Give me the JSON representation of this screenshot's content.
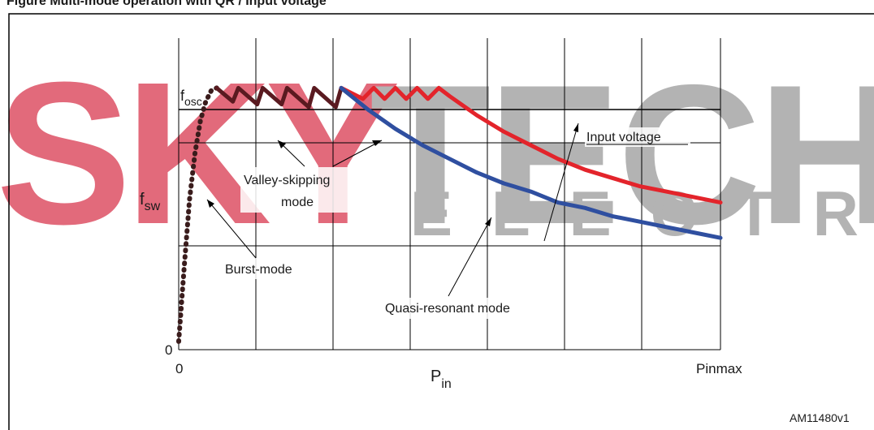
{
  "header": {
    "caption_fragment": "Figure   Multi-mode operation with QR / Input voltage"
  },
  "watermark": {
    "brand_left": "SKY",
    "brand_right": "TECH",
    "brand_sub": "ELECTRONIC",
    "color_left": "#d9394f",
    "color_right": "#9a9a9a"
  },
  "chart_data": {
    "type": "line",
    "xlabel": "P",
    "xlabel_sub": "in",
    "ylabel": "f",
    "ylabel_sub": "sw",
    "x_ticks": [
      "0",
      "Pinmax"
    ],
    "y_ticks": [
      "0"
    ],
    "ref_line": {
      "label": "f",
      "label_sub": "osc",
      "y": 0.96
    },
    "xlim": [
      0,
      1
    ],
    "ylim": [
      0,
      1
    ],
    "grid": true,
    "series": [
      {
        "name": "Burst-mode",
        "color": "#3a1c1c",
        "x": [
          0.0,
          0.01,
          0.02,
          0.03,
          0.04,
          0.05,
          0.06,
          0.07
        ],
        "y": [
          0.03,
          0.3,
          0.55,
          0.72,
          0.84,
          0.91,
          0.95,
          0.96
        ]
      },
      {
        "name": "Valley-skipping mode",
        "color": "#5a1a20",
        "x": [
          0.07,
          0.1,
          0.11,
          0.145,
          0.155,
          0.19,
          0.2,
          0.24,
          0.25,
          0.29,
          0.3
        ],
        "y": [
          0.96,
          0.91,
          0.96,
          0.9,
          0.96,
          0.9,
          0.96,
          0.89,
          0.96,
          0.89,
          0.96
        ]
      },
      {
        "name": "Input voltage (high)",
        "color": "#e3242b",
        "x": [
          0.3,
          0.34,
          0.36,
          0.38,
          0.4,
          0.42,
          0.44,
          0.46,
          0.48,
          0.5,
          0.55,
          0.6,
          0.65,
          0.7,
          0.75,
          0.8,
          0.85,
          0.9,
          0.95,
          1.0
        ],
        "y": [
          0.96,
          0.92,
          0.96,
          0.92,
          0.96,
          0.92,
          0.96,
          0.92,
          0.96,
          0.93,
          0.86,
          0.8,
          0.75,
          0.7,
          0.66,
          0.63,
          0.6,
          0.58,
          0.56,
          0.54
        ]
      },
      {
        "name": "Quasi-resonant mode (low)",
        "color": "#2f4fa0",
        "x": [
          0.3,
          0.35,
          0.4,
          0.45,
          0.5,
          0.55,
          0.6,
          0.65,
          0.7,
          0.75,
          0.8,
          0.85,
          0.9,
          0.95,
          1.0
        ],
        "y": [
          0.96,
          0.88,
          0.81,
          0.75,
          0.7,
          0.65,
          0.61,
          0.58,
          0.54,
          0.52,
          0.49,
          0.47,
          0.45,
          0.43,
          0.41
        ]
      }
    ],
    "annotations": [
      {
        "text": "Valley-skipping",
        "line2": "mode"
      },
      {
        "text": "Burst-mode"
      },
      {
        "text": "Quasi-resonant mode"
      },
      {
        "text": "Input voltage"
      }
    ]
  },
  "figure_id": "AM11480v1"
}
